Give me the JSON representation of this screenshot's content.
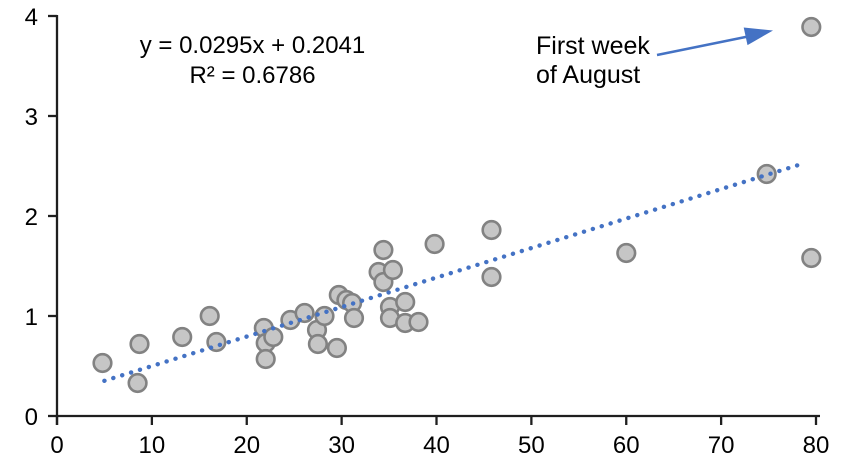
{
  "chart_data": {
    "type": "scatter",
    "title": "",
    "xlabel": "",
    "ylabel": "",
    "xlim": [
      0,
      80
    ],
    "ylim": [
      0,
      4
    ],
    "x_ticks": [
      "0",
      "10",
      "20",
      "30",
      "40",
      "50",
      "60",
      "70",
      "80"
    ],
    "y_ticks": [
      "0",
      "1",
      "2",
      "3",
      "4"
    ],
    "grid": false,
    "legend": "none",
    "background": "#ffffff",
    "series": [
      {
        "name": "scatter-points",
        "points": [
          [
            4.8,
            0.53
          ],
          [
            8.5,
            0.33
          ],
          [
            8.7,
            0.72
          ],
          [
            13.2,
            0.79
          ],
          [
            16.1,
            1.0
          ],
          [
            16.8,
            0.74
          ],
          [
            21.8,
            0.88
          ],
          [
            22.0,
            0.73
          ],
          [
            22.0,
            0.57
          ],
          [
            22.8,
            0.79
          ],
          [
            24.6,
            0.96
          ],
          [
            26.1,
            1.03
          ],
          [
            27.4,
            0.86
          ],
          [
            27.5,
            0.72
          ],
          [
            28.2,
            1.0
          ],
          [
            29.5,
            0.68
          ],
          [
            29.7,
            1.21
          ],
          [
            30.5,
            1.16
          ],
          [
            31.1,
            1.13
          ],
          [
            31.3,
            0.98
          ],
          [
            33.9,
            1.44
          ],
          [
            34.4,
            1.66
          ],
          [
            34.4,
            1.34
          ],
          [
            35.4,
            1.46
          ],
          [
            35.1,
            1.09
          ],
          [
            35.1,
            0.98
          ],
          [
            36.7,
            1.14
          ],
          [
            36.7,
            0.93
          ],
          [
            38.1,
            0.94
          ],
          [
            39.8,
            1.72
          ],
          [
            45.8,
            1.86
          ],
          [
            45.8,
            1.39
          ],
          [
            60.0,
            1.63
          ],
          [
            74.8,
            2.42
          ],
          [
            79.5,
            3.89
          ],
          [
            79.5,
            1.58
          ]
        ]
      }
    ],
    "trendline": {
      "equation": "y = 0.0295x + 0.2041",
      "r_squared_label": "R² = 0.6786",
      "slope": 0.0295,
      "intercept": 0.2041,
      "x_start": 5.0,
      "x_end": 78.8,
      "style": "dotted"
    },
    "annotation": {
      "line1": "First week",
      "line2": "of August",
      "target_point": [
        79.5,
        3.89
      ]
    },
    "colors": {
      "trendline": "#4472c4",
      "arrow": "#4472c4",
      "marker_fill": "#c6c6c6",
      "marker_stroke": "#828282",
      "axis": "#1f1f1f",
      "tick_text": "#000000"
    }
  }
}
